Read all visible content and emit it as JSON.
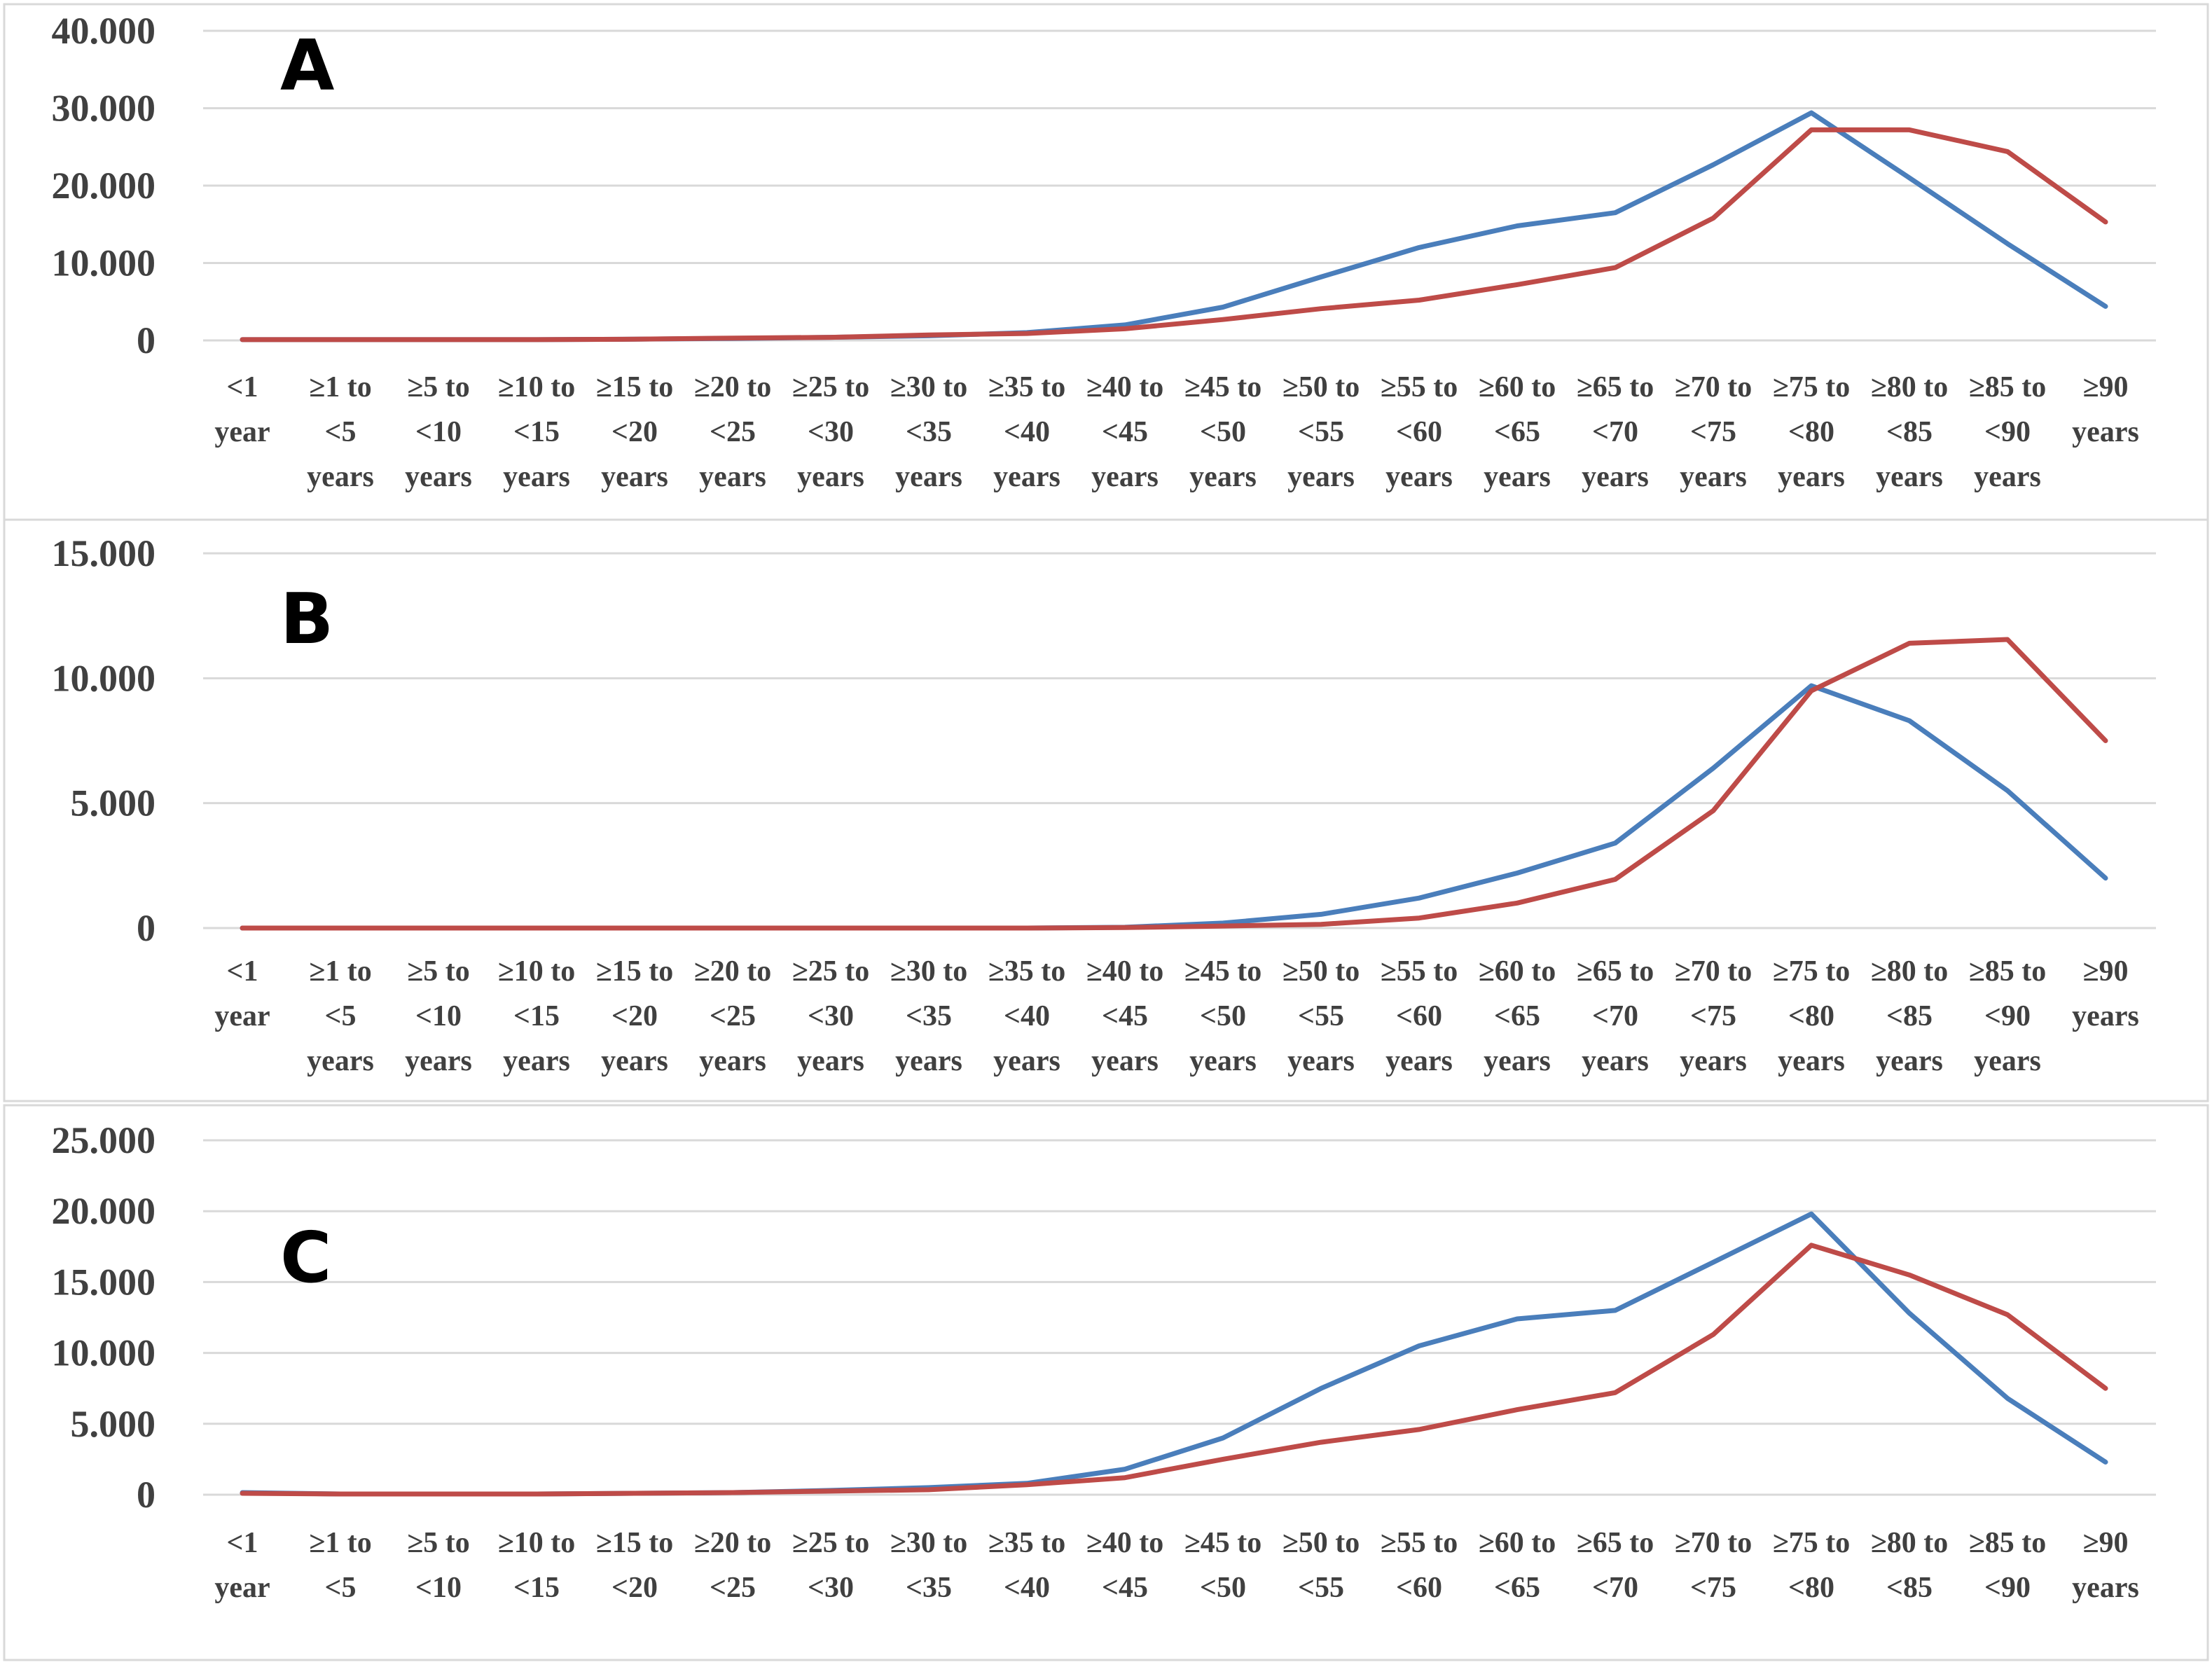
{
  "chart_data": [
    {
      "type": "line",
      "panel_label": "A",
      "categories": [
        [
          "<1",
          "year"
        ],
        [
          "≥1 to",
          "<5",
          "years"
        ],
        [
          "≥5 to",
          "<10",
          "years"
        ],
        [
          "≥10 to",
          "<15",
          "years"
        ],
        [
          "≥15 to",
          "<20",
          "years"
        ],
        [
          "≥20 to",
          "<25",
          "years"
        ],
        [
          "≥25 to",
          "<30",
          "years"
        ],
        [
          "≥30 to",
          "<35",
          "years"
        ],
        [
          "≥35 to",
          "<40",
          "years"
        ],
        [
          "≥40 to",
          "<45",
          "years"
        ],
        [
          "≥45 to",
          "<50",
          "years"
        ],
        [
          "≥50 to",
          "<55",
          "years"
        ],
        [
          "≥55 to",
          "<60",
          "years"
        ],
        [
          "≥60 to",
          "<65",
          "years"
        ],
        [
          "≥65 to",
          "<70",
          "years"
        ],
        [
          "≥70 to",
          "<75",
          "years"
        ],
        [
          "≥75 to",
          "<80",
          "years"
        ],
        [
          "≥80 to",
          "<85",
          "years"
        ],
        [
          "≥85 to",
          "<90",
          "years"
        ],
        [
          "≥90",
          "years"
        ]
      ],
      "ylim": [
        0,
        40000
      ],
      "yticks": [
        0,
        10000,
        20000,
        30000,
        40000
      ],
      "ytick_labels": [
        "0",
        "10.000",
        "20.000",
        "30.000",
        "40.000"
      ],
      "grid": true,
      "series": [
        {
          "color": "#4a7ebb",
          "values": [
            100,
            100,
            100,
            100,
            150,
            250,
            400,
            600,
            1000,
            2000,
            4300,
            8200,
            12000,
            14800,
            16500,
            22700,
            29400,
            21000,
            12500,
            4400
          ]
        },
        {
          "color": "#be4b48",
          "values": [
            100,
            100,
            100,
            100,
            150,
            300,
            400,
            700,
            900,
            1500,
            2700,
            4100,
            5200,
            7200,
            9400,
            15800,
            27200,
            27200,
            24400,
            15300
          ]
        }
      ]
    },
    {
      "type": "line",
      "panel_label": "B",
      "categories": [
        [
          "<1",
          "year"
        ],
        [
          "≥1 to",
          "<5",
          "years"
        ],
        [
          "≥5 to",
          "<10",
          "years"
        ],
        [
          "≥10 to",
          "<15",
          "years"
        ],
        [
          "≥15 to",
          "<20",
          "years"
        ],
        [
          "≥20 to",
          "<25",
          "years"
        ],
        [
          "≥25 to",
          "<30",
          "years"
        ],
        [
          "≥30 to",
          "<35",
          "years"
        ],
        [
          "≥35 to",
          "<40",
          "years"
        ],
        [
          "≥40 to",
          "<45",
          "years"
        ],
        [
          "≥45 to",
          "<50",
          "years"
        ],
        [
          "≥50 to",
          "<55",
          "years"
        ],
        [
          "≥55 to",
          "<60",
          "years"
        ],
        [
          "≥60 to",
          "<65",
          "years"
        ],
        [
          "≥65 to",
          "<70",
          "years"
        ],
        [
          "≥70 to",
          "<75",
          "years"
        ],
        [
          "≥75 to",
          "<80",
          "years"
        ],
        [
          "≥80 to",
          "<85",
          "years"
        ],
        [
          "≥85 to",
          "<90",
          "years"
        ],
        [
          "≥90",
          "years"
        ]
      ],
      "ylim": [
        0,
        15000
      ],
      "yticks": [
        0,
        5000,
        10000,
        15000
      ],
      "ytick_labels": [
        "0",
        "5.000",
        "10.000",
        "15.000"
      ],
      "grid": true,
      "series": [
        {
          "color": "#4a7ebb",
          "values": [
            0,
            0,
            0,
            0,
            0,
            0,
            0,
            0,
            0,
            30,
            200,
            550,
            1200,
            2200,
            3400,
            6400,
            9700,
            8300,
            5500,
            2000
          ]
        },
        {
          "color": "#be4b48",
          "values": [
            0,
            0,
            0,
            0,
            0,
            0,
            0,
            0,
            0,
            20,
            80,
            150,
            400,
            1000,
            1950,
            4700,
            9500,
            11400,
            11550,
            7500
          ]
        }
      ]
    },
    {
      "type": "line",
      "panel_label": "C",
      "categories": [
        [
          "<1",
          "year"
        ],
        [
          "≥1 to",
          "<5"
        ],
        [
          "≥5 to",
          "<10"
        ],
        [
          "≥10 to",
          "<15"
        ],
        [
          "≥15 to",
          "<20"
        ],
        [
          "≥20 to",
          "<25"
        ],
        [
          "≥25 to",
          "<30"
        ],
        [
          "≥30 to",
          "<35"
        ],
        [
          "≥35 to",
          "<40"
        ],
        [
          "≥40 to",
          "<45"
        ],
        [
          "≥45 to",
          "<50"
        ],
        [
          "≥50 to",
          "<55"
        ],
        [
          "≥55 to",
          "<60"
        ],
        [
          "≥60 to",
          "<65"
        ],
        [
          "≥65 to",
          "<70"
        ],
        [
          "≥70 to",
          "<75"
        ],
        [
          "≥75 to",
          "<80"
        ],
        [
          "≥80 to",
          "<85"
        ],
        [
          "≥85 to",
          "<90"
        ],
        [
          "≥90",
          "years"
        ]
      ],
      "ylim": [
        0,
        25000
      ],
      "yticks": [
        0,
        5000,
        10000,
        15000,
        20000,
        25000
      ],
      "ytick_labels": [
        "0",
        "5.000",
        "10.000",
        "15.000",
        "20.000",
        "25.000"
      ],
      "grid": true,
      "series": [
        {
          "color": "#4a7ebb",
          "values": [
            150,
            50,
            50,
            50,
            100,
            150,
            300,
            500,
            800,
            1800,
            4000,
            7500,
            10500,
            12400,
            13000,
            16400,
            19800,
            12800,
            6800,
            2300
          ]
        },
        {
          "color": "#be4b48",
          "values": [
            100,
            50,
            50,
            50,
            100,
            150,
            250,
            350,
            700,
            1200,
            2500,
            3700,
            4600,
            6000,
            7200,
            11300,
            17600,
            15500,
            12700,
            7500
          ]
        }
      ]
    }
  ]
}
